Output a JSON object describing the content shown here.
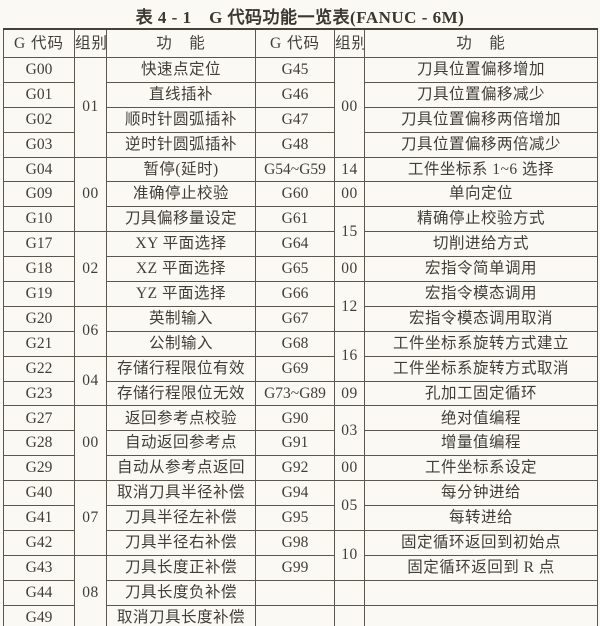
{
  "title": "表 4 - 1　G 代码功能一览表(FANUC - 6M)",
  "headers": {
    "left_code": "G 代码",
    "left_group": "组别",
    "left_func": "功　能",
    "right_code": "G 代码",
    "right_group": "组别",
    "right_func": "功　能"
  },
  "table": {
    "left": [
      {
        "code": "G00",
        "group": "01",
        "gspan": 4,
        "func": "快速点定位"
      },
      {
        "code": "G01",
        "func": "直线插补"
      },
      {
        "code": "G02",
        "func": "顺时针圆弧插补"
      },
      {
        "code": "G03",
        "func": "逆时针圆弧插补"
      },
      {
        "code": "G04",
        "group": "00",
        "gspan": 3,
        "func": "暂停(延时)"
      },
      {
        "code": "G09",
        "func": "准确停止校验"
      },
      {
        "code": "G10",
        "func": "刀具偏移量设定"
      },
      {
        "code": "G17",
        "group": "02",
        "gspan": 3,
        "func": "XY 平面选择"
      },
      {
        "code": "G18",
        "func": "XZ 平面选择"
      },
      {
        "code": "G19",
        "func": "YZ 平面选择"
      },
      {
        "code": "G20",
        "group": "06",
        "gspan": 2,
        "func": "英制输入"
      },
      {
        "code": "G21",
        "func": "公制输入"
      },
      {
        "code": "G22",
        "group": "04",
        "gspan": 2,
        "func": "存储行程限位有效"
      },
      {
        "code": "G23",
        "func": "存储行程限位无效"
      },
      {
        "code": "G27",
        "group": "00",
        "gspan": 3,
        "func": "返回参考点校验"
      },
      {
        "code": "G28",
        "func": "自动返回参考点"
      },
      {
        "code": "G29",
        "func": "自动从参考点返回"
      },
      {
        "code": "G40",
        "group": "07",
        "gspan": 3,
        "func": "取消刀具半径补偿"
      },
      {
        "code": "G41",
        "func": "刀具半径左补偿"
      },
      {
        "code": "G42",
        "func": "刀具半径右补偿"
      },
      {
        "code": "G43",
        "group": "08",
        "gspan": 3,
        "func": "刀具长度正补偿"
      },
      {
        "code": "G44",
        "func": "刀具长度负补偿"
      },
      {
        "code": "G49",
        "func": "取消刀具长度补偿"
      }
    ],
    "right": [
      {
        "code": "G45",
        "group": "00",
        "gspan": 4,
        "func": "刀具位置偏移增加"
      },
      {
        "code": "G46",
        "func": "刀具位置偏移减少"
      },
      {
        "code": "G47",
        "func": "刀具位置偏移两倍增加"
      },
      {
        "code": "G48",
        "func": "刀具位置偏移两倍减少"
      },
      {
        "code": "G54~G59",
        "group": "14",
        "gspan": 1,
        "func": "工件坐标系 1~6 选择"
      },
      {
        "code": "G60",
        "group": "00",
        "gspan": 1,
        "func": "单向定位"
      },
      {
        "code": "G61",
        "group": "15",
        "gspan": 2,
        "func": "精确停止校验方式"
      },
      {
        "code": "G64",
        "func": "切削进给方式"
      },
      {
        "code": "G65",
        "group": "00",
        "gspan": 1,
        "func": "宏指令简单调用"
      },
      {
        "code": "G66",
        "group": "12",
        "gspan": 2,
        "func": "宏指令模态调用"
      },
      {
        "code": "G67",
        "func": "宏指令模态调用取消"
      },
      {
        "code": "G68",
        "group": "16",
        "gspan": 2,
        "func": "工件坐标系旋转方式建立"
      },
      {
        "code": "G69",
        "func": "工件坐标系旋转方式取消"
      },
      {
        "code": "G73~G89",
        "group": "09",
        "gspan": 1,
        "func": "孔加工固定循环"
      },
      {
        "code": "G90",
        "group": "03",
        "gspan": 2,
        "func": "绝对值编程"
      },
      {
        "code": "G91",
        "func": "增量值编程"
      },
      {
        "code": "G92",
        "group": "00",
        "gspan": 1,
        "func": "工件坐标系设定"
      },
      {
        "code": "G94",
        "group": "05",
        "gspan": 2,
        "func": "每分钟进给"
      },
      {
        "code": "G95",
        "func": "每转进给"
      },
      {
        "code": "G98",
        "group": "10",
        "gspan": 2,
        "func": "固定循环返回到初始点"
      },
      {
        "code": "G99",
        "func": "固定循环返回到 R 点"
      },
      {
        "code": "",
        "group": "",
        "gspan": 1,
        "func": ""
      },
      {
        "code": "",
        "group": "",
        "gspan": 1,
        "func": ""
      }
    ]
  }
}
